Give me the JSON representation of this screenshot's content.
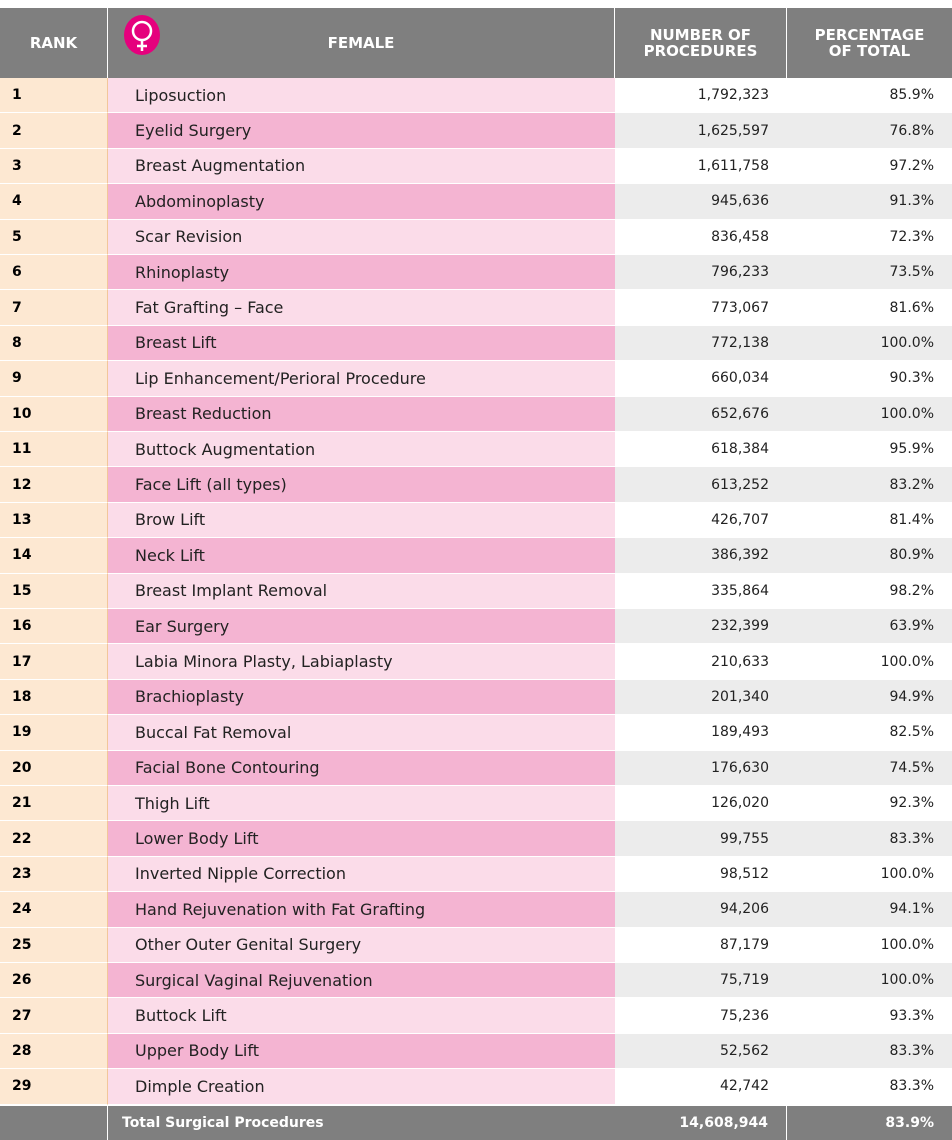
{
  "header": {
    "rank": "RANK",
    "female": "FEMALE",
    "number": [
      "NUMBER OF",
      "PROCEDURES"
    ],
    "percentage": [
      "PERCENTAGE",
      "OF TOTAL"
    ]
  },
  "rows": [
    [
      "1",
      "Liposuction",
      "1,792,323",
      "85.9%"
    ],
    [
      "2",
      "Eyelid Surgery",
      "1,625,597",
      "76.8%"
    ],
    [
      "3",
      "Breast Augmentation",
      "1,611,758",
      "97.2%"
    ],
    [
      "4",
      "Abdominoplasty",
      "945,636",
      "91.3%"
    ],
    [
      "5",
      "Scar Revision",
      "836,458",
      "72.3%"
    ],
    [
      "6",
      "Rhinoplasty",
      "796,233",
      "73.5%"
    ],
    [
      "7",
      "Fat Grafting – Face",
      "773,067",
      "81.6%"
    ],
    [
      "8",
      "Breast Lift",
      "772,138",
      "100.0%"
    ],
    [
      "9",
      "Lip Enhancement/Perioral Procedure",
      "660,034",
      "90.3%"
    ],
    [
      "10",
      "Breast Reduction",
      "652,676",
      "100.0%"
    ],
    [
      "11",
      "Buttock Augmentation",
      "618,384",
      "95.9%"
    ],
    [
      "12",
      "Face Lift (all types)",
      "613,252",
      "83.2%"
    ],
    [
      "13",
      "Brow Lift",
      "426,707",
      "81.4%"
    ],
    [
      "14",
      "Neck Lift",
      "386,392",
      "80.9%"
    ],
    [
      "15",
      "Breast Implant Removal",
      "335,864",
      "98.2%"
    ],
    [
      "16",
      "Ear Surgery",
      "232,399",
      "63.9%"
    ],
    [
      "17",
      "Labia Minora Plasty, Labiaplasty",
      "210,633",
      "100.0%"
    ],
    [
      "18",
      "Brachioplasty",
      "201,340",
      "94.9%"
    ],
    [
      "19",
      "Buccal Fat Removal",
      "189,493",
      "82.5%"
    ],
    [
      "20",
      "Facial Bone Contouring",
      "176,630",
      "74.5%"
    ],
    [
      "21",
      "Thigh Lift",
      "126,020",
      "92.3%"
    ],
    [
      "22",
      "Lower Body Lift",
      "99,755",
      "83.3%"
    ],
    [
      "23",
      "Inverted Nipple Correction",
      "98,512",
      "100.0%"
    ],
    [
      "24",
      "Hand Rejuvenation with Fat Grafting",
      "94,206",
      "94.1%"
    ],
    [
      "25",
      "Other Outer Genital Surgery",
      "87,179",
      "100.0%"
    ],
    [
      "26",
      "Surgical Vaginal Rejuvenation",
      "75,719",
      "100.0%"
    ],
    [
      "27",
      "Buttock Lift",
      "75,236",
      "93.3%"
    ],
    [
      "28",
      "Upper Body Lift",
      "52,562",
      "83.3%"
    ],
    [
      "29",
      "Dimple Creation",
      "42,742",
      "83.3%"
    ]
  ],
  "total": {
    "label": "Total Surgical Procedures",
    "number": "14,608,944",
    "percentage": "83.9%"
  }
}
